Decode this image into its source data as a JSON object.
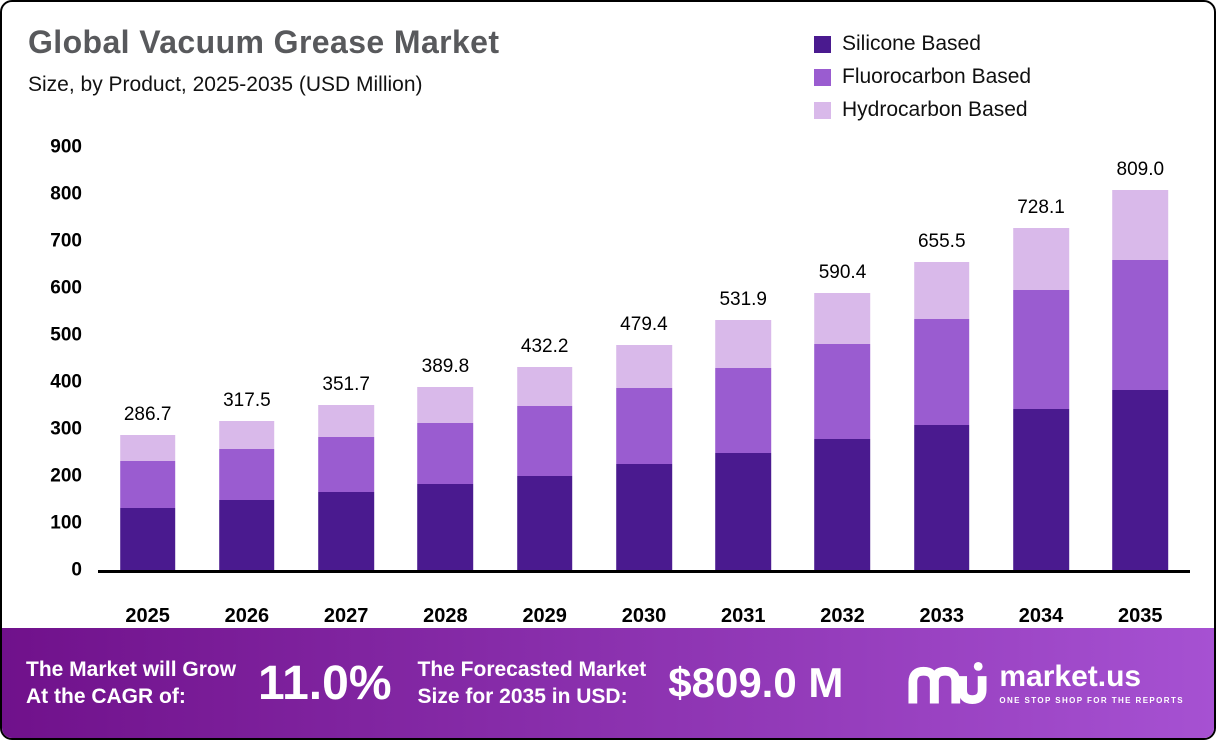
{
  "chart_data": {
    "type": "bar",
    "stacked": true,
    "title": "Global Vacuum Grease Market",
    "subtitle": "Size, by Product, 2025-2035 (USD Million)",
    "categories": [
      "2025",
      "2026",
      "2027",
      "2028",
      "2029",
      "2030",
      "2031",
      "2032",
      "2033",
      "2034",
      "2035"
    ],
    "series": [
      {
        "name": "Silicone Based",
        "color": "#4a1a8f",
        "values": [
          133,
          148,
          165,
          183,
          201,
          225,
          250,
          278,
          308,
          342,
          382
        ]
      },
      {
        "name": "Fluorocarbon Based",
        "color": "#9a5cd0",
        "values": [
          99,
          109,
          118,
          130,
          149,
          163,
          180,
          202,
          227,
          253,
          278
        ]
      },
      {
        "name": "Hydrocarbon Based",
        "color": "#d9b9ea",
        "values": [
          54.7,
          60.5,
          68.7,
          76.8,
          82.2,
          91.4,
          101.9,
          110.4,
          120.5,
          133.1,
          149
        ]
      }
    ],
    "totals": [
      286.7,
      317.5,
      351.7,
      389.8,
      432.2,
      479.4,
      531.9,
      590.4,
      655.5,
      728.1,
      809.0
    ],
    "xlabel": "",
    "ylabel": "",
    "ylim": [
      0,
      900
    ],
    "yticks": [
      0,
      100,
      200,
      300,
      400,
      500,
      600,
      700,
      800,
      900
    ],
    "grid": false,
    "legend_position": "top-right"
  },
  "banner": {
    "gradient": [
      "#70118b",
      "#a651d2"
    ],
    "grow_line1": "The Market will Grow",
    "grow_line2": "At the CAGR of:",
    "cagr": "11.0%",
    "forecast_line1": "The Forecasted Market",
    "forecast_line2": "Size for 2035 in USD:",
    "forecast_value": "$809.0 M",
    "logo": {
      "wordmark": "market.us",
      "tagline": "ONE STOP SHOP FOR THE REPORTS"
    }
  }
}
